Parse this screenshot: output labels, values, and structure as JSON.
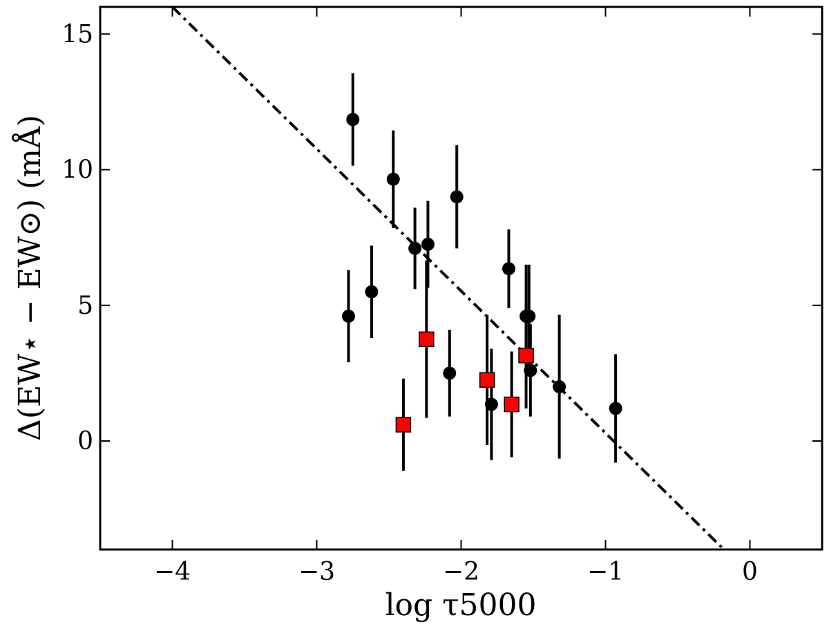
{
  "chart_data": {
    "type": "scatter",
    "title": "",
    "xlabel": "log τ5000",
    "ylabel": "Δ(EW⋆ − EW⊙) (mÅ)",
    "xlim": [
      -4.5,
      0.5
    ],
    "ylim": [
      -4,
      16
    ],
    "grid": false,
    "xticks": [
      -4,
      -3,
      -2,
      -1,
      0
    ],
    "xtick_labels": [
      "−4",
      "−3",
      "−2",
      "−1",
      "0"
    ],
    "yticks": [
      0,
      5,
      10,
      15
    ],
    "ytick_labels": [
      "0",
      "5",
      "10",
      "15"
    ],
    "series": [
      {
        "marker": "circle",
        "color": "#000000",
        "points": [
          {
            "x": -2.78,
            "y": 4.6,
            "err": 1.7
          },
          {
            "x": -2.75,
            "y": 11.85,
            "err": 1.7
          },
          {
            "x": -2.62,
            "y": 5.5,
            "err": 1.7
          },
          {
            "x": -2.47,
            "y": 9.65,
            "err": 1.8
          },
          {
            "x": -2.32,
            "y": 7.1,
            "err": 1.5
          },
          {
            "x": -2.23,
            "y": 7.25,
            "err": 1.6
          },
          {
            "x": -2.03,
            "y": 9.0,
            "err": 1.9
          },
          {
            "x": -2.08,
            "y": 2.5,
            "err": 1.6
          },
          {
            "x": -1.79,
            "y": 1.35,
            "err": 2.05
          },
          {
            "x": -1.67,
            "y": 6.35,
            "err": 1.45
          },
          {
            "x": -1.55,
            "y": 4.6,
            "err": 1.9
          },
          {
            "x": -1.53,
            "y": 4.6,
            "err": 1.9
          },
          {
            "x": -1.52,
            "y": 2.6,
            "err": 1.7
          },
          {
            "x": -1.32,
            "y": 2.0,
            "err": 2.65
          },
          {
            "x": -0.93,
            "y": 1.2,
            "err": 2.0
          }
        ]
      },
      {
        "marker": "square",
        "color": "#ff0000",
        "points": [
          {
            "x": -2.4,
            "y": 0.6,
            "err": 1.7
          },
          {
            "x": -2.24,
            "y": 3.75,
            "err": 2.9
          },
          {
            "x": -1.82,
            "y": 2.25,
            "err": 2.4
          },
          {
            "x": -1.65,
            "y": 1.35,
            "err": 1.95
          },
          {
            "x": -1.55,
            "y": 3.15,
            "err": 1.95
          }
        ]
      }
    ],
    "fit_line": {
      "style": "dash-dot",
      "color": "#000000",
      "points": [
        [
          -4.0,
          16.0
        ],
        [
          -0.18,
          -4.0
        ]
      ]
    }
  }
}
